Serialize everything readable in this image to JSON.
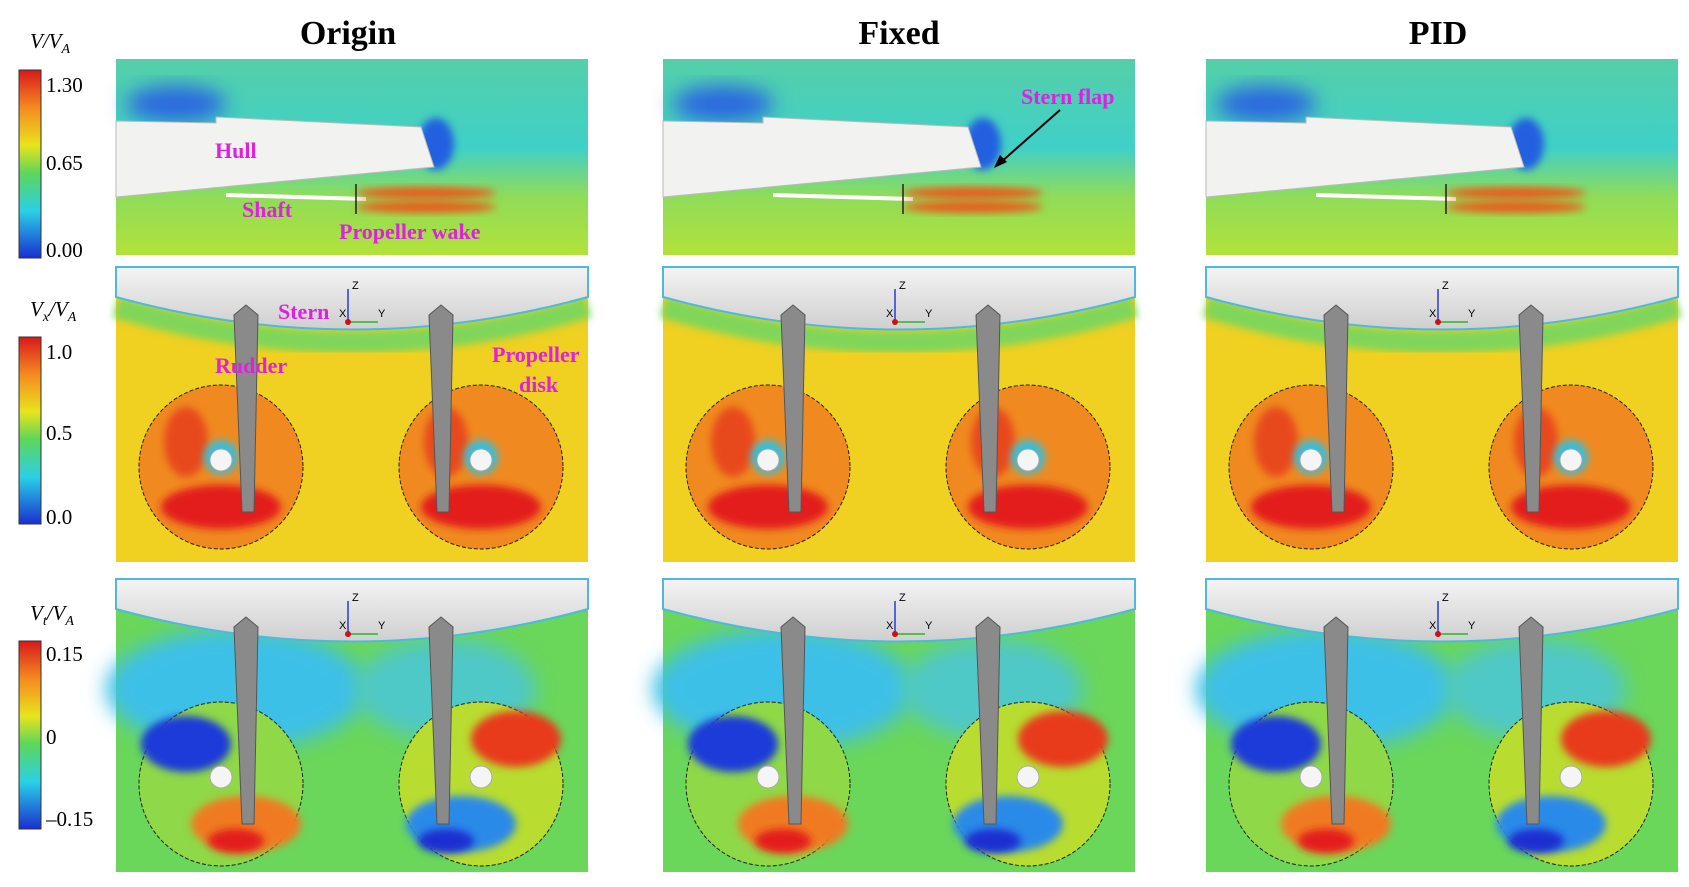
{
  "columns": [
    {
      "title": "Origin"
    },
    {
      "title": "Fixed"
    },
    {
      "title": "PID"
    }
  ],
  "colorbars": [
    {
      "label": [
        {
          "text": "V/V"
        },
        {
          "sub": "A"
        }
      ],
      "ticks": [
        "1.30",
        "0.65",
        "0.00"
      ]
    },
    {
      "label": [
        {
          "text": "V"
        },
        {
          "sub": "x"
        },
        {
          "text": "/V"
        },
        {
          "sub": "A"
        }
      ],
      "ticks": [
        "1.0",
        "0.5",
        "0.0"
      ]
    },
    {
      "label": [
        {
          "text": "V"
        },
        {
          "sub": "t"
        },
        {
          "text": "/V"
        },
        {
          "sub": "A"
        }
      ],
      "ticks": [
        "0.15",
        "0",
        "–0.15"
      ]
    }
  ],
  "annotations": {
    "hull": "Hull",
    "shaft": "Shaft",
    "propeller_wake": "Propeller wake",
    "stern_flap": "Stern flap",
    "stern": "Stern",
    "rudder": "Rudder",
    "propeller_disk": [
      "Propeller",
      "disk"
    ]
  },
  "triad": {
    "z": "Z",
    "x": "X",
    "y": "Y"
  }
}
